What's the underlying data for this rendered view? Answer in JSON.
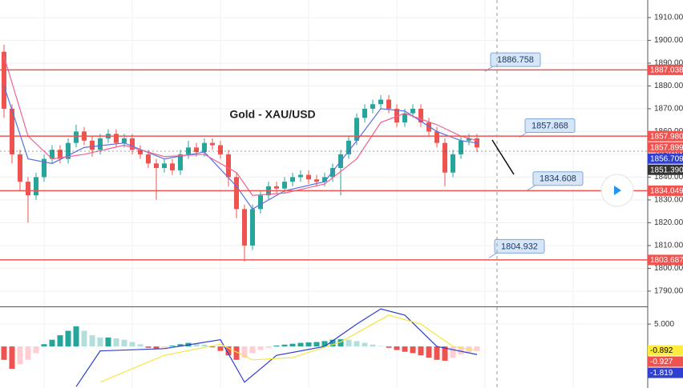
{
  "chart_data": [
    {
      "type": "candlestick",
      "title": "Gold - XAU/USD",
      "open": [
        1895,
        1870,
        1850,
        1838,
        1832,
        1840,
        1848,
        1852,
        1848,
        1855,
        1860,
        1856,
        1852,
        1857,
        1859,
        1855,
        1857,
        1852,
        1850,
        1846,
        1844,
        1846,
        1843,
        1850,
        1853,
        1851,
        1855,
        1854,
        1850,
        1840,
        1826,
        1810,
        1826,
        1832,
        1836,
        1835,
        1838,
        1840,
        1841,
        1839,
        1838,
        1840,
        1844,
        1850,
        1856,
        1866,
        1870,
        1872,
        1874,
        1870,
        1864,
        1868,
        1870,
        1864,
        1860,
        1855,
        1842,
        1850,
        1856,
        1857
      ],
      "high": [
        1898,
        1872,
        1852,
        1840,
        1842,
        1850,
        1854,
        1854,
        1857,
        1863,
        1862,
        1858,
        1859,
        1861,
        1861,
        1859,
        1859,
        1854,
        1852,
        1848,
        1848,
        1848,
        1852,
        1856,
        1855,
        1857,
        1857,
        1856,
        1852,
        1842,
        1828,
        1828,
        1834,
        1838,
        1838,
        1840,
        1842,
        1843,
        1843,
        1841,
        1842,
        1846,
        1852,
        1858,
        1868,
        1872,
        1874,
        1876,
        1876,
        1872,
        1870,
        1872,
        1872,
        1866,
        1862,
        1857,
        1852,
        1858,
        1859,
        1859
      ],
      "low": [
        1866,
        1846,
        1834,
        1820,
        1830,
        1838,
        1846,
        1846,
        1846,
        1853,
        1854,
        1849,
        1850,
        1855,
        1853,
        1853,
        1850,
        1848,
        1844,
        1830,
        1842,
        1841,
        1841,
        1848,
        1849,
        1849,
        1852,
        1848,
        1836,
        1822,
        1803,
        1808,
        1824,
        1830,
        1833,
        1833,
        1836,
        1838,
        1837,
        1836,
        1836,
        1838,
        1832,
        1848,
        1854,
        1864,
        1868,
        1870,
        1868,
        1862,
        1862,
        1866,
        1862,
        1858,
        1853,
        1836,
        1840,
        1848,
        1854,
        1851
      ],
      "close": [
        1870,
        1850,
        1838,
        1832,
        1840,
        1848,
        1852,
        1848,
        1855,
        1860,
        1856,
        1852,
        1857,
        1859,
        1855,
        1857,
        1852,
        1850,
        1846,
        1844,
        1846,
        1843,
        1850,
        1853,
        1851,
        1855,
        1854,
        1850,
        1840,
        1826,
        1810,
        1826,
        1832,
        1836,
        1835,
        1838,
        1840,
        1841,
        1839,
        1838,
        1840,
        1844,
        1850,
        1856,
        1866,
        1870,
        1872,
        1874,
        1870,
        1864,
        1868,
        1870,
        1864,
        1860,
        1855,
        1842,
        1850,
        1856,
        1857,
        1853
      ],
      "up_color": "#26a69a",
      "down_color": "#ef5350",
      "lines": [
        {
          "color": "#5b6ee1",
          "x": [
            0,
            3,
            6,
            10,
            15,
            20,
            25,
            29,
            31,
            35,
            40,
            44,
            47,
            50,
            54,
            57,
            59
          ],
          "values": [
            1880,
            1848,
            1846,
            1853,
            1855,
            1848,
            1851,
            1836,
            1826,
            1834,
            1838,
            1856,
            1870,
            1869,
            1860,
            1856,
            1855
          ]
        },
        {
          "color": "#f06292",
          "x": [
            0,
            3,
            6,
            10,
            15,
            20,
            25,
            29,
            31,
            35,
            40,
            44,
            47,
            50,
            54,
            57,
            59
          ],
          "values": [
            1893,
            1858,
            1848,
            1850,
            1854,
            1849,
            1850,
            1842,
            1832,
            1833,
            1837,
            1848,
            1864,
            1868,
            1863,
            1858,
            1856
          ]
        }
      ],
      "ylim": [
        1783.3,
        1917.7
      ],
      "yticks": [
        {
          "value": 1910,
          "label": "1910.000"
        },
        {
          "value": 1900,
          "label": "1900.000"
        },
        {
          "value": 1890,
          "label": "1890.000"
        },
        {
          "value": 1880,
          "label": "1880.000"
        },
        {
          "value": 1870,
          "label": "1870.000"
        },
        {
          "value": 1860,
          "label": "1860.000"
        },
        {
          "value": 1850,
          "label": "1850.000"
        },
        {
          "value": 1840,
          "label": "1840.000"
        },
        {
          "value": 1830,
          "label": "1830.000"
        },
        {
          "value": 1820,
          "label": "1820.000"
        },
        {
          "value": 1810,
          "label": "1810.000"
        },
        {
          "value": 1800,
          "label": "1800.000"
        },
        {
          "value": 1790,
          "label": "1790.000"
        }
      ],
      "grid": true,
      "price_labels": [
        {
          "value": 1887.038,
          "label": "1887.038",
          "color": "#ef5350",
          "line": "solid"
        },
        {
          "value": 1857.98,
          "label": "1857.980",
          "color": "#ef5350",
          "line": "solid"
        },
        {
          "value": 1857.899,
          "label": "1857.899",
          "color": "#ef5350"
        },
        {
          "value": 1856.709,
          "label": "1856.709",
          "color": "#2f3fd0"
        },
        {
          "value": 1851.39,
          "label": "1851.390",
          "color": "#333333",
          "line": "dotted"
        },
        {
          "value": 1834.049,
          "label": "1834.049",
          "color": "#ef5350",
          "line": "solid"
        },
        {
          "value": 1803.687,
          "label": "1803.687",
          "color": "#ef5350",
          "line": "solid"
        }
      ],
      "annotations": [
        {
          "value": 1886.758,
          "label": "1886.758"
        },
        {
          "value": 1857.868,
          "label": "1857.868"
        },
        {
          "value": 1834.608,
          "label": "1834.608"
        },
        {
          "value": 1804.932,
          "label": "1804.932"
        }
      ]
    },
    {
      "type": "macd",
      "histogram": [
        -3,
        -5,
        -4,
        -3,
        -1.5,
        0.5,
        1.5,
        2.5,
        3.5,
        4.5,
        3.5,
        2.5,
        2,
        2,
        1.8,
        1.5,
        1,
        0.5,
        -0.3,
        -0.5,
        -0.3,
        0.2,
        0.5,
        0.8,
        0.6,
        0.4,
        -0.2,
        -1,
        -2,
        -3,
        -2.5,
        -1.5,
        -0.8,
        -0.3,
        0.2,
        0.4,
        0.6,
        0.8,
        0.9,
        1,
        1.2,
        1.5,
        1.6,
        1.5,
        1.2,
        0.8,
        0.4,
        0.1,
        -0.3,
        -0.8,
        -1.2,
        -1.5,
        -2,
        -2.5,
        -3,
        -3.2,
        -2.5,
        -1.8,
        -1.3,
        -1
      ],
      "colors": {
        "pos_up": "#26a69a",
        "pos_down": "#b2dfdb",
        "neg_down": "#ef5350",
        "neg_up": "#ffcdd2"
      },
      "lines": [
        {
          "color": "#2f3fd0",
          "x": [
            9,
            12,
            20,
            27,
            30,
            34,
            40,
            44,
            47,
            50,
            54,
            59
          ],
          "values": [
            -9,
            -1,
            -0.5,
            1.5,
            -8,
            -2,
            0,
            5,
            8.4,
            7,
            0,
            -1.8
          ]
        },
        {
          "color": "#f5e642",
          "x": [
            12,
            20,
            27,
            31,
            36,
            42,
            48,
            52,
            56,
            59
          ],
          "values": [
            -8,
            -2,
            0.5,
            -3,
            -2.5,
            1,
            7,
            5,
            0,
            -0.9
          ]
        }
      ],
      "ylim": [
        -9.3,
        8.6
      ],
      "yticks": [
        {
          "value": 5,
          "label": "5.000"
        }
      ],
      "price_labels": [
        {
          "value": -0.892,
          "label": "-0.892",
          "color": "#ffeb3b",
          "text_color": "#000000"
        },
        {
          "value": -0.927,
          "label": "-0.927",
          "color": "#ef5350"
        },
        {
          "value": -1.819,
          "label": "-1.819",
          "color": "#2f3fd0"
        }
      ]
    }
  ]
}
